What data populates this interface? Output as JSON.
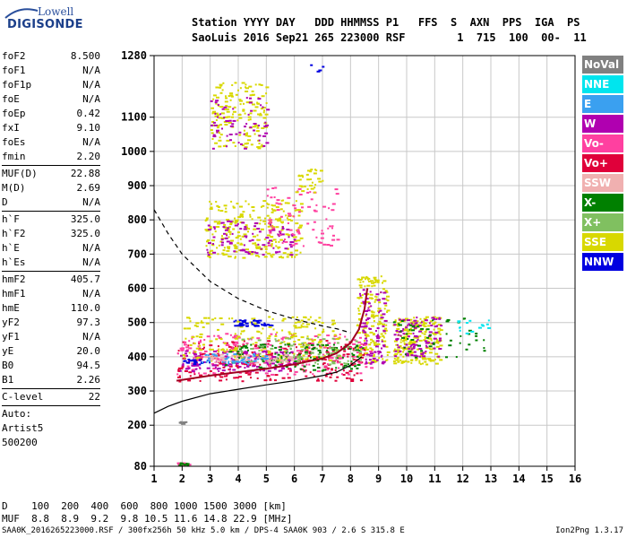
{
  "logo": {
    "line1": "Lowell",
    "line2": "DIGISONDE"
  },
  "header": {
    "line1": "Station YYYY DAY   DDD HHMMSS P1   FFS  S  AXN  PPS  IGA  PS",
    "line2": "SaoLuis 2016 Sep21 265 223000 RSF        1  715  100  00-  11"
  },
  "params": {
    "groups": [
      [
        [
          "foF2",
          "8.500"
        ],
        [
          "foF1",
          "N/A"
        ],
        [
          "foF1p",
          "N/A"
        ],
        [
          "foE",
          "N/A"
        ],
        [
          "foEp",
          "0.42"
        ],
        [
          "fxI",
          "9.10"
        ],
        [
          "foEs",
          "N/A"
        ],
        [
          "fmin",
          "2.20"
        ]
      ],
      [
        [
          "MUF(D)",
          "22.88"
        ],
        [
          "M(D)",
          "2.69"
        ],
        [
          "D",
          "N/A"
        ]
      ],
      [
        [
          "h`F",
          "325.0"
        ],
        [
          "h`F2",
          "325.0"
        ],
        [
          "h`E",
          "N/A"
        ],
        [
          "h`Es",
          "N/A"
        ]
      ],
      [
        [
          "hmF2",
          "405.7"
        ],
        [
          "hmF1",
          "N/A"
        ],
        [
          "hmE",
          "110.0"
        ],
        [
          "yF2",
          "97.3"
        ],
        [
          "yF1",
          "N/A"
        ],
        [
          "yE",
          "20.0"
        ],
        [
          "B0",
          "94.5"
        ],
        [
          "B1",
          "2.26"
        ]
      ],
      [
        [
          "C-level",
          "22"
        ]
      ]
    ],
    "auto": [
      "Auto:",
      "Artist5",
      "500200"
    ]
  },
  "legend": [
    {
      "label": "NoVal",
      "color": "#808080"
    },
    {
      "label": "NNE",
      "color": "#00e5ee"
    },
    {
      "label": "E",
      "color": "#3aa0f0"
    },
    {
      "label": "W",
      "color": "#b000b0"
    },
    {
      "label": "Vo-",
      "color": "#ff40a0"
    },
    {
      "label": "Vo+",
      "color": "#e0003a"
    },
    {
      "label": "SSW",
      "color": "#f0b0b0"
    },
    {
      "label": "X-",
      "color": "#008000"
    },
    {
      "label": "X+",
      "color": "#80c060"
    },
    {
      "label": "SSE",
      "color": "#d8d800"
    },
    {
      "label": "NNW",
      "color": "#0000e0"
    }
  ],
  "muf_table": {
    "d_label": "D",
    "d_values": [
      "100",
      "200",
      "400",
      "600",
      "800",
      "1000",
      "1500",
      "3000"
    ],
    "d_unit": "[km]",
    "m_label": "MUF",
    "m_values": [
      "8.8",
      "8.9",
      "9.2",
      "9.8",
      "10.5",
      "11.6",
      "14.8",
      "22.9"
    ],
    "m_unit": "[MHz]"
  },
  "footer": {
    "left": "SAA0K_2016265223000.RSF / 300fx256h 50 kHz 5.0 km / DPS-4 SAA0K 903 / 2.6 S 315.8 E",
    "right": "Ion2Png 1.3.17"
  },
  "chart_data": {
    "type": "scatter",
    "xlim": [
      1,
      16
    ],
    "ylim": [
      80,
      1280
    ],
    "x_ticks": [
      1,
      2,
      3,
      4,
      5,
      6,
      7,
      8,
      9,
      10,
      11,
      12,
      13,
      14,
      15,
      16
    ],
    "y_ticks": [
      80,
      200,
      300,
      400,
      500,
      600,
      700,
      800,
      900,
      1000,
      1100,
      1280
    ],
    "grid": true,
    "curves": {
      "trace_dashed": [
        [
          1,
          830
        ],
        [
          1.5,
          760
        ],
        [
          2,
          700
        ],
        [
          3,
          620
        ],
        [
          4,
          570
        ],
        [
          5,
          535
        ],
        [
          6,
          510
        ],
        [
          7,
          490
        ],
        [
          7.5,
          482
        ],
        [
          8,
          470
        ]
      ],
      "profile_solid": [
        [
          1,
          235
        ],
        [
          1.5,
          255
        ],
        [
          2,
          270
        ],
        [
          3,
          292
        ],
        [
          4,
          305
        ],
        [
          5,
          318
        ],
        [
          6,
          330
        ],
        [
          7,
          345
        ],
        [
          7.5,
          355
        ],
        [
          8,
          375
        ],
        [
          8.4,
          400
        ]
      ],
      "trace_red": [
        [
          1.8,
          330
        ],
        [
          3,
          345
        ],
        [
          4,
          355
        ],
        [
          5,
          365
        ],
        [
          6,
          378
        ],
        [
          7,
          395
        ],
        [
          7.5,
          410
        ],
        [
          8,
          440
        ],
        [
          8.3,
          480
        ],
        [
          8.5,
          540
        ],
        [
          8.6,
          600
        ]
      ]
    },
    "clusters": [
      {
        "color_index": 5,
        "x": [
          1.8,
          8.5
        ],
        "y": [
          330,
          450
        ],
        "n": 260
      },
      {
        "color_index": 4,
        "x": [
          1.8,
          8.7
        ],
        "y": [
          350,
          470
        ],
        "n": 220
      },
      {
        "color_index": 3,
        "x": [
          1.9,
          6.0
        ],
        "y": [
          360,
          420
        ],
        "n": 140
      },
      {
        "color_index": 9,
        "x": [
          2.0,
          7.6
        ],
        "y": [
          390,
          520
        ],
        "n": 200
      },
      {
        "color_index": 7,
        "x": [
          3.5,
          8.4
        ],
        "y": [
          360,
          440
        ],
        "n": 120
      },
      {
        "color_index": 8,
        "x": [
          4.0,
          8.4
        ],
        "y": [
          380,
          460
        ],
        "n": 80
      },
      {
        "color_index": 10,
        "x": [
          3.8,
          5.2
        ],
        "y": [
          490,
          510
        ],
        "n": 40
      },
      {
        "color_index": 10,
        "x": [
          2.0,
          3.0
        ],
        "y": [
          380,
          395
        ],
        "n": 20
      },
      {
        "color_index": 6,
        "x": [
          2.8,
          6.0
        ],
        "y": [
          385,
          410
        ],
        "n": 60
      },
      {
        "color_index": 2,
        "x": [
          2.5,
          5.0
        ],
        "y": [
          380,
          410
        ],
        "n": 40
      },
      {
        "color_index": 9,
        "x": [
          2.8,
          6.2
        ],
        "y": [
          690,
          860
        ],
        "n": 260
      },
      {
        "color_index": 3,
        "x": [
          2.8,
          6.0
        ],
        "y": [
          700,
          800
        ],
        "n": 90
      },
      {
        "color_index": 4,
        "x": [
          5.0,
          7.5
        ],
        "y": [
          720,
          900
        ],
        "n": 80
      },
      {
        "color_index": 9,
        "x": [
          3.0,
          5.0
        ],
        "y": [
          1010,
          1210
        ],
        "n": 160
      },
      {
        "color_index": 3,
        "x": [
          3.0,
          5.0
        ],
        "y": [
          1010,
          1160
        ],
        "n": 60
      },
      {
        "color_index": 9,
        "x": [
          8.2,
          9.3
        ],
        "y": [
          380,
          640
        ],
        "n": 160
      },
      {
        "color_index": 3,
        "x": [
          8.3,
          9.2
        ],
        "y": [
          380,
          600
        ],
        "n": 80
      },
      {
        "color_index": 9,
        "x": [
          9.5,
          11.2
        ],
        "y": [
          380,
          520
        ],
        "n": 220
      },
      {
        "color_index": 3,
        "x": [
          9.5,
          11.2
        ],
        "y": [
          400,
          520
        ],
        "n": 90
      },
      {
        "color_index": 7,
        "x": [
          9.5,
          12.8
        ],
        "y": [
          400,
          520
        ],
        "n": 50
      },
      {
        "color_index": 1,
        "x": [
          11.5,
          13.2
        ],
        "y": [
          470,
          510
        ],
        "n": 15
      },
      {
        "color_index": 4,
        "x": [
          1.8,
          2.3
        ],
        "y": [
          84,
          92
        ],
        "n": 18
      },
      {
        "color_index": 7,
        "x": [
          1.8,
          2.3
        ],
        "y": [
          84,
          92
        ],
        "n": 12
      },
      {
        "color_index": 0,
        "x": [
          1.8,
          2.1
        ],
        "y": [
          206,
          212
        ],
        "n": 8
      },
      {
        "color_index": 10,
        "x": [
          6.5,
          7.0
        ],
        "y": [
          1230,
          1260
        ],
        "n": 4
      },
      {
        "color_index": 9,
        "x": [
          6.0,
          7.0
        ],
        "y": [
          880,
          950
        ],
        "n": 30
      }
    ]
  }
}
